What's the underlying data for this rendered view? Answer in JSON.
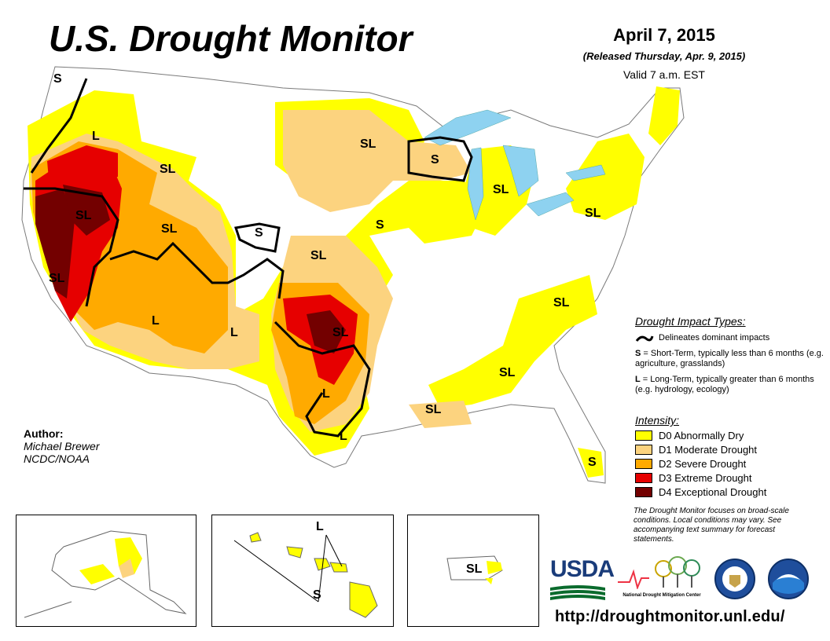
{
  "header": {
    "title": "U.S. Drought Monitor",
    "date": "April 7, 2015",
    "released": "(Released Thursday, Apr. 9, 2015)",
    "valid": "Valid 7 a.m. EST"
  },
  "map_labels": [
    "S",
    "L",
    "SL",
    "SL",
    "SL",
    "S",
    "SL",
    "SL",
    "S",
    "SL",
    "SL",
    "SL",
    "L",
    "L",
    "SL",
    "SL",
    "L",
    "SL",
    "L",
    "SL",
    "S"
  ],
  "author": {
    "heading": "Author:",
    "name": "Michael Brewer",
    "org": "NCDC/NOAA"
  },
  "impact_legend": {
    "heading": "Drought Impact Types:",
    "delineates": "Delineates dominant impacts",
    "short_term_key": "S",
    "short_term_text": " = Short-Term, typically less than 6 months (e.g. agriculture, grasslands)",
    "long_term_key": "L",
    "long_term_text": " = Long-Term, typically greater than 6 months (e.g. hydrology, ecology)"
  },
  "intensity_legend": {
    "heading": "Intensity:",
    "items": [
      {
        "label": "D0 Abnormally Dry",
        "color": "#FFFF00"
      },
      {
        "label": "D1 Moderate Drought",
        "color": "#FCD37F"
      },
      {
        "label": "D2 Severe Drought",
        "color": "#FFAA00"
      },
      {
        "label": "D3 Extreme Drought",
        "color": "#E60000"
      },
      {
        "label": "D4 Exceptional Drought",
        "color": "#730000"
      }
    ]
  },
  "note": "The Drought Monitor focuses on broad-scale conditions. Local conditions may vary. See accompanying text summary for forecast statements.",
  "insets": {
    "hawaii_labels": [
      "L",
      "S"
    ],
    "puerto_rico_label": "SL"
  },
  "logos": {
    "usda": "USDA",
    "ndmc_line1": "National",
    "ndmc_line2": "Drought Mitigation Center"
  },
  "url": "http://droughtmonitor.unl.edu/",
  "colors": {
    "D0": "#FFFF00",
    "D1": "#FCD37F",
    "D2": "#FFAA00",
    "D3": "#E60000",
    "D4": "#730000",
    "water": "#8ED2F0"
  }
}
